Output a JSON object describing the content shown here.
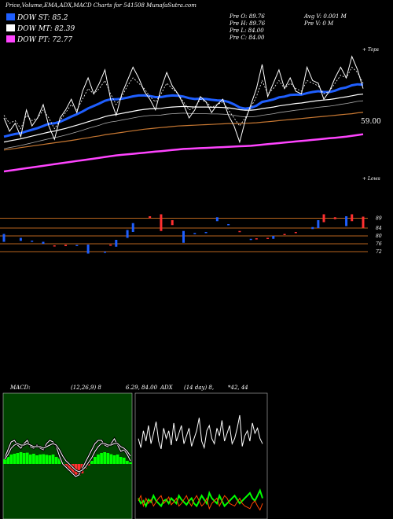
{
  "header": {
    "title": "Price,Volume,EMA,ADX,MACD Charts for 541508 MunafaSutra.com",
    "prev_open": "Pre  O: 89.76",
    "prev_high": "Pre  H: 89.76",
    "prev_low": "Pre  L: 84.00",
    "prev_close": "Pre  C: 84.00",
    "avg_vol": "Avg V: 0.001 M",
    "prev_vol": "Pre  V: 0  M"
  },
  "legend": [
    {
      "label": "DOW ST: 85.2",
      "color": "#1f5fff"
    },
    {
      "label": "DOW MT: 82.39",
      "color": "#ffffff"
    },
    {
      "label": "DOW PT: 72.77",
      "color": "#ff44ff"
    }
  ],
  "colors": {
    "up": "#1f5fff",
    "down": "#ff3030",
    "accent": "#ff44ff",
    "level_line": "#b8651e",
    "macd_bg": "#004400"
  },
  "chart_data": [
    {
      "type": "line",
      "name": "price-ema-panel",
      "price_label": "59.00",
      "edge_top": "+ Tops",
      "edge_bottom": "+ Lows",
      "ylim": [
        30,
        80
      ],
      "x": [
        0,
        1,
        2,
        3,
        4,
        5,
        6,
        7,
        8,
        9,
        10,
        11,
        12,
        13,
        14,
        15,
        16,
        17,
        18,
        19,
        20,
        21,
        22,
        23,
        24,
        25,
        26,
        27,
        28,
        29,
        30,
        31,
        32,
        33,
        34,
        35,
        36,
        37,
        38,
        39,
        40,
        41,
        42,
        43,
        44,
        45,
        46,
        47,
        48,
        49,
        50,
        51,
        52,
        53,
        54,
        55,
        56,
        57,
        58,
        59,
        60,
        61,
        62,
        63,
        64
      ],
      "series": [
        {
          "name": "price",
          "color": "#ffffff",
          "values": [
            55,
            50,
            53,
            48,
            58,
            52,
            55,
            60,
            52,
            47,
            55,
            58,
            62,
            57,
            65,
            70,
            64,
            68,
            73,
            62,
            56,
            64,
            69,
            74,
            70,
            65,
            62,
            58,
            66,
            72,
            67,
            64,
            60,
            55,
            58,
            63,
            61,
            57,
            60,
            62,
            56,
            52,
            46,
            54,
            60,
            66,
            75,
            63,
            68,
            73,
            66,
            70,
            65,
            64,
            74,
            69,
            68,
            62,
            65,
            70,
            74,
            70,
            78,
            73,
            66
          ]
        },
        {
          "name": "price-dotted",
          "color": "#ffffff",
          "values": [
            56,
            53,
            54,
            51,
            56,
            54,
            55,
            58,
            55,
            51,
            54,
            57,
            60,
            58,
            62,
            66,
            64,
            66,
            69,
            64,
            60,
            63,
            67,
            70,
            68,
            66,
            63,
            61,
            64,
            68,
            66,
            64,
            61,
            58,
            59,
            62,
            61,
            59,
            60,
            61,
            58,
            55,
            52,
            55,
            59,
            63,
            69,
            64,
            66,
            69,
            66,
            68,
            66,
            65,
            69,
            68,
            67,
            64,
            65,
            68,
            71,
            70,
            74,
            72,
            68
          ]
        },
        {
          "name": "ema-short",
          "color": "#1f5fff",
          "values": [
            48,
            48.5,
            49,
            49.3,
            50,
            50.6,
            51.2,
            52,
            52.8,
            53,
            53.6,
            54.5,
            55.5,
            56.4,
            57.4,
            58.6,
            59.5,
            60.4,
            61.4,
            62,
            62,
            62.2,
            62.6,
            63.1,
            63.4,
            63.4,
            63.2,
            62.8,
            62.8,
            63.2,
            63.4,
            63.3,
            63,
            62.4,
            62.1,
            62.2,
            62.1,
            61.8,
            61.6,
            61.5,
            61,
            60.1,
            58.9,
            58.5,
            58.8,
            59.6,
            61,
            61.4,
            61.9,
            62.7,
            63,
            63.6,
            63.7,
            63.7,
            64.3,
            64.7,
            65,
            64.7,
            64.7,
            65.2,
            66,
            66.4,
            67.2,
            67.6,
            67.4
          ]
        },
        {
          "name": "ema-mid",
          "color": "#ffffff",
          "values": [
            46,
            46.4,
            46.8,
            47.2,
            47.7,
            48.2,
            48.7,
            49.2,
            49.7,
            50.1,
            50.6,
            51.1,
            51.7,
            52.3,
            52.9,
            53.6,
            54.2,
            54.8,
            55.5,
            56,
            56.3,
            56.7,
            57.1,
            57.5,
            57.9,
            58.2,
            58.4,
            58.5,
            58.6,
            58.9,
            59.1,
            59.2,
            59.3,
            59.2,
            59.1,
            59.1,
            59.1,
            59,
            59,
            58.9,
            58.8,
            58.5,
            58.1,
            57.9,
            57.9,
            58.1,
            58.5,
            58.8,
            59.1,
            59.5,
            59.8,
            60.1,
            60.4,
            60.6,
            60.9,
            61.2,
            61.5,
            61.7,
            61.9,
            62.2,
            62.6,
            62.9,
            63.3,
            63.7,
            63.9
          ]
        },
        {
          "name": "ema-long",
          "color": "#c87832",
          "values": [
            43,
            43.3,
            43.6,
            43.9,
            44.2,
            44.5,
            44.8,
            45.1,
            45.4,
            45.7,
            46,
            46.3,
            46.6,
            46.9,
            47.3,
            47.6,
            48,
            48.3,
            48.7,
            49,
            49.3,
            49.6,
            49.9,
            50.2,
            50.5,
            50.8,
            51,
            51.2,
            51.4,
            51.6,
            51.8,
            52,
            52.1,
            52.2,
            52.3,
            52.4,
            52.5,
            52.6,
            52.7,
            52.8,
            52.9,
            52.9,
            52.9,
            53,
            53.1,
            53.2,
            53.4,
            53.6,
            53.8,
            54,
            54.2,
            54.4,
            54.6,
            54.8,
            55,
            55.2,
            55.4,
            55.6,
            55.8,
            56,
            56.2,
            56.4,
            56.6,
            56.9,
            57.1
          ]
        },
        {
          "name": "ema-longest",
          "color": "#ff44ff",
          "values": [
            35,
            35.3,
            35.6,
            35.9,
            36.2,
            36.5,
            36.8,
            37.1,
            37.4,
            37.7,
            38,
            38.3,
            38.6,
            38.9,
            39.2,
            39.5,
            39.8,
            40.1,
            40.4,
            40.7,
            41,
            41.2,
            41.4,
            41.6,
            41.8,
            42,
            42.2,
            42.4,
            42.6,
            42.8,
            43,
            43.2,
            43.4,
            43.5,
            43.6,
            43.7,
            43.8,
            43.9,
            44,
            44.1,
            44.2,
            44.3,
            44.4,
            44.5,
            44.6,
            44.8,
            45,
            45.2,
            45.4,
            45.6,
            45.8,
            46,
            46.2,
            46.4,
            46.6,
            46.8,
            47,
            47.2,
            47.4,
            47.6,
            47.8,
            48,
            48.3,
            48.6,
            48.9
          ]
        }
      ]
    },
    {
      "type": "bar",
      "name": "candle-panel",
      "levels": [
        89,
        84,
        80,
        76,
        72
      ],
      "ylim": [
        64,
        98
      ],
      "candles": [
        {
          "x": 0,
          "open": 81,
          "close": 77,
          "up": true
        },
        {
          "x": 3,
          "open": 79,
          "close": 77.5,
          "up": true
        },
        {
          "x": 5,
          "open": 77.6,
          "close": 77,
          "up": true
        },
        {
          "x": 7,
          "open": 77,
          "close": 76,
          "up": true
        },
        {
          "x": 9,
          "open": 75.2,
          "close": 74.6,
          "up": false
        },
        {
          "x": 11,
          "open": 75.5,
          "close": 74.8,
          "up": false
        },
        {
          "x": 13,
          "open": 75.4,
          "close": 74.8,
          "up": true
        },
        {
          "x": 15,
          "open": 71,
          "close": 75.6,
          "up": true
        },
        {
          "x": 18,
          "open": 72,
          "close": 71.5,
          "up": true
        },
        {
          "x": 19,
          "open": 75.6,
          "close": 75,
          "up": false
        },
        {
          "x": 20,
          "open": 78,
          "close": 74.5,
          "up": true
        },
        {
          "x": 22,
          "open": 83,
          "close": 79,
          "up": true
        },
        {
          "x": 23,
          "open": 86.5,
          "close": 82,
          "up": true
        },
        {
          "x": 26,
          "open": 90,
          "close": 89,
          "up": false
        },
        {
          "x": 28,
          "open": 91,
          "close": 82.5,
          "up": false
        },
        {
          "x": 30,
          "open": 88,
          "close": 85.5,
          "up": false
        },
        {
          "x": 32,
          "open": 82.5,
          "close": 76.5,
          "up": true
        },
        {
          "x": 34,
          "open": 81.5,
          "close": 81,
          "up": true
        },
        {
          "x": 36,
          "open": 82,
          "close": 81.5,
          "up": true
        },
        {
          "x": 38,
          "open": 89.5,
          "close": 87.5,
          "up": true
        },
        {
          "x": 40,
          "open": 86,
          "close": 85.5,
          "up": true
        },
        {
          "x": 42,
          "open": 82.5,
          "close": 82.2,
          "up": false
        },
        {
          "x": 44,
          "open": 78.5,
          "close": 78,
          "up": true
        },
        {
          "x": 45,
          "open": 78.8,
          "close": 78.4,
          "up": false
        },
        {
          "x": 47,
          "open": 79,
          "close": 78.4,
          "up": false
        },
        {
          "x": 48,
          "open": 80,
          "close": 78.5,
          "up": true
        },
        {
          "x": 50,
          "open": 81,
          "close": 80.5,
          "up": false
        },
        {
          "x": 52,
          "open": 82,
          "close": 81.6,
          "up": false
        },
        {
          "x": 55,
          "open": 84.5,
          "close": 83.5,
          "up": true
        },
        {
          "x": 56,
          "open": 88,
          "close": 84,
          "up": true
        },
        {
          "x": 57,
          "open": 91,
          "close": 87,
          "up": false
        },
        {
          "x": 59,
          "open": 89.5,
          "close": 88.5,
          "up": false
        },
        {
          "x": 61,
          "open": 90,
          "close": 85,
          "up": true
        },
        {
          "x": 62,
          "open": 91,
          "close": 87.5,
          "up": false
        },
        {
          "x": 64,
          "open": 89.8,
          "close": 84,
          "up": false
        }
      ]
    },
    {
      "type": "bar",
      "name": "macd-panel",
      "title": "MACD:",
      "params": "(12,26,9) 8",
      "values_text": "6.29, 84.00",
      "ylim": [
        -1.5,
        2.5
      ],
      "x": [
        0,
        1,
        2,
        3,
        4,
        5,
        6,
        7,
        8,
        9,
        10,
        11,
        12,
        13,
        14,
        15,
        16,
        17,
        18,
        19,
        20,
        21,
        22,
        23,
        24,
        25,
        26,
        27,
        28,
        29,
        30,
        31,
        32,
        33,
        34,
        35,
        36,
        37,
        38,
        39
      ],
      "series": [
        {
          "name": "histogram",
          "values": [
            0.3,
            0.45,
            0.6,
            0.65,
            0.7,
            0.75,
            0.7,
            0.72,
            0.6,
            0.65,
            0.55,
            0.6,
            0.62,
            0.58,
            0.55,
            0.6,
            0.45,
            0.35,
            0.1,
            -0.2,
            -0.45,
            -0.6,
            -0.7,
            -0.75,
            -0.6,
            -0.3,
            -0.1,
            0.2,
            0.45,
            0.6,
            0.7,
            0.75,
            0.7,
            0.62,
            0.55,
            0.6,
            0.45,
            0.4,
            0.2,
            0.1
          ]
        },
        {
          "name": "macd",
          "color": "#ffffff",
          "values": [
            0.4,
            0.9,
            1.4,
            1.5,
            1.2,
            1,
            1.3,
            1.5,
            1.1,
            1,
            1.2,
            1,
            0.9,
            1.3,
            1.5,
            1.4,
            1.1,
            0.5,
            0,
            -0.2,
            -0.4,
            -0.6,
            -0.8,
            -0.7,
            -0.3,
            0.1,
            0.5,
            0.9,
            1.3,
            1.5,
            1.5,
            1.2,
            1.1,
            1.3,
            1.6,
            1.2,
            0.8,
            0.9,
            0.6,
            0.2
          ]
        },
        {
          "name": "signal",
          "color": "#ffffff",
          "values": [
            0.3,
            0.6,
            1,
            1.2,
            1.3,
            1.2,
            1.2,
            1.3,
            1.2,
            1.1,
            1.1,
            1.1,
            1,
            1.1,
            1.2,
            1.3,
            1.2,
            0.9,
            0.5,
            0.2,
            0,
            -0.2,
            -0.4,
            -0.5,
            -0.4,
            -0.2,
            0.1,
            0.4,
            0.8,
            1.1,
            1.3,
            1.3,
            1.2,
            1.2,
            1.3,
            1.3,
            1.1,
            1,
            0.8,
            0.5
          ]
        }
      ]
    },
    {
      "type": "line",
      "name": "adx-panel",
      "title": "ADX",
      "params": "(14 day) 8,",
      "values_text": "*42, 44",
      "ylim": [
        0,
        100
      ],
      "x": [
        0,
        1,
        2,
        3,
        4,
        5,
        6,
        7,
        8,
        9,
        10,
        11,
        12,
        13,
        14,
        15,
        16,
        17,
        18,
        19,
        20,
        21,
        22,
        23,
        24,
        25,
        26,
        27,
        28,
        29,
        30,
        31,
        32,
        33,
        34,
        35,
        36,
        37,
        38,
        39,
        40,
        41,
        42,
        43,
        44,
        45,
        46,
        47,
        48,
        49
      ],
      "series": [
        {
          "name": "adx",
          "color": "#ffffff",
          "values": [
            62,
            55,
            68,
            60,
            72,
            58,
            66,
            75,
            60,
            54,
            70,
            62,
            68,
            57,
            74,
            60,
            66,
            72,
            58,
            64,
            70,
            56,
            62,
            68,
            78,
            60,
            55,
            68,
            72,
            62,
            58,
            70,
            64,
            76,
            60,
            66,
            72,
            58,
            62,
            70,
            80,
            56,
            64,
            68,
            60,
            74,
            66,
            70,
            62,
            58
          ]
        },
        {
          "name": "plus-di",
          "color": "#00ff00",
          "values": [
            16,
            12,
            14,
            10,
            15,
            13,
            18,
            14,
            12,
            10,
            14,
            15,
            12,
            16,
            14,
            12,
            18,
            15,
            13,
            11,
            14,
            16,
            12,
            10,
            14,
            18,
            15,
            12,
            20,
            16,
            14,
            12,
            18,
            14,
            10,
            12,
            14,
            16,
            18,
            15,
            12,
            14,
            16,
            18,
            20,
            16,
            14,
            18,
            22,
            16
          ]
        },
        {
          "name": "minus-di",
          "color": "#ff4400",
          "values": [
            14,
            18,
            10,
            16,
            12,
            15,
            10,
            13,
            16,
            18,
            12,
            14,
            17,
            11,
            13,
            16,
            10,
            12,
            15,
            18,
            13,
            10,
            15,
            18,
            14,
            10,
            12,
            16,
            8,
            12,
            14,
            16,
            10,
            14,
            18,
            16,
            12,
            11,
            10,
            13,
            16,
            12,
            10,
            9,
            8,
            12,
            14,
            10,
            7,
            12
          ]
        }
      ]
    }
  ]
}
